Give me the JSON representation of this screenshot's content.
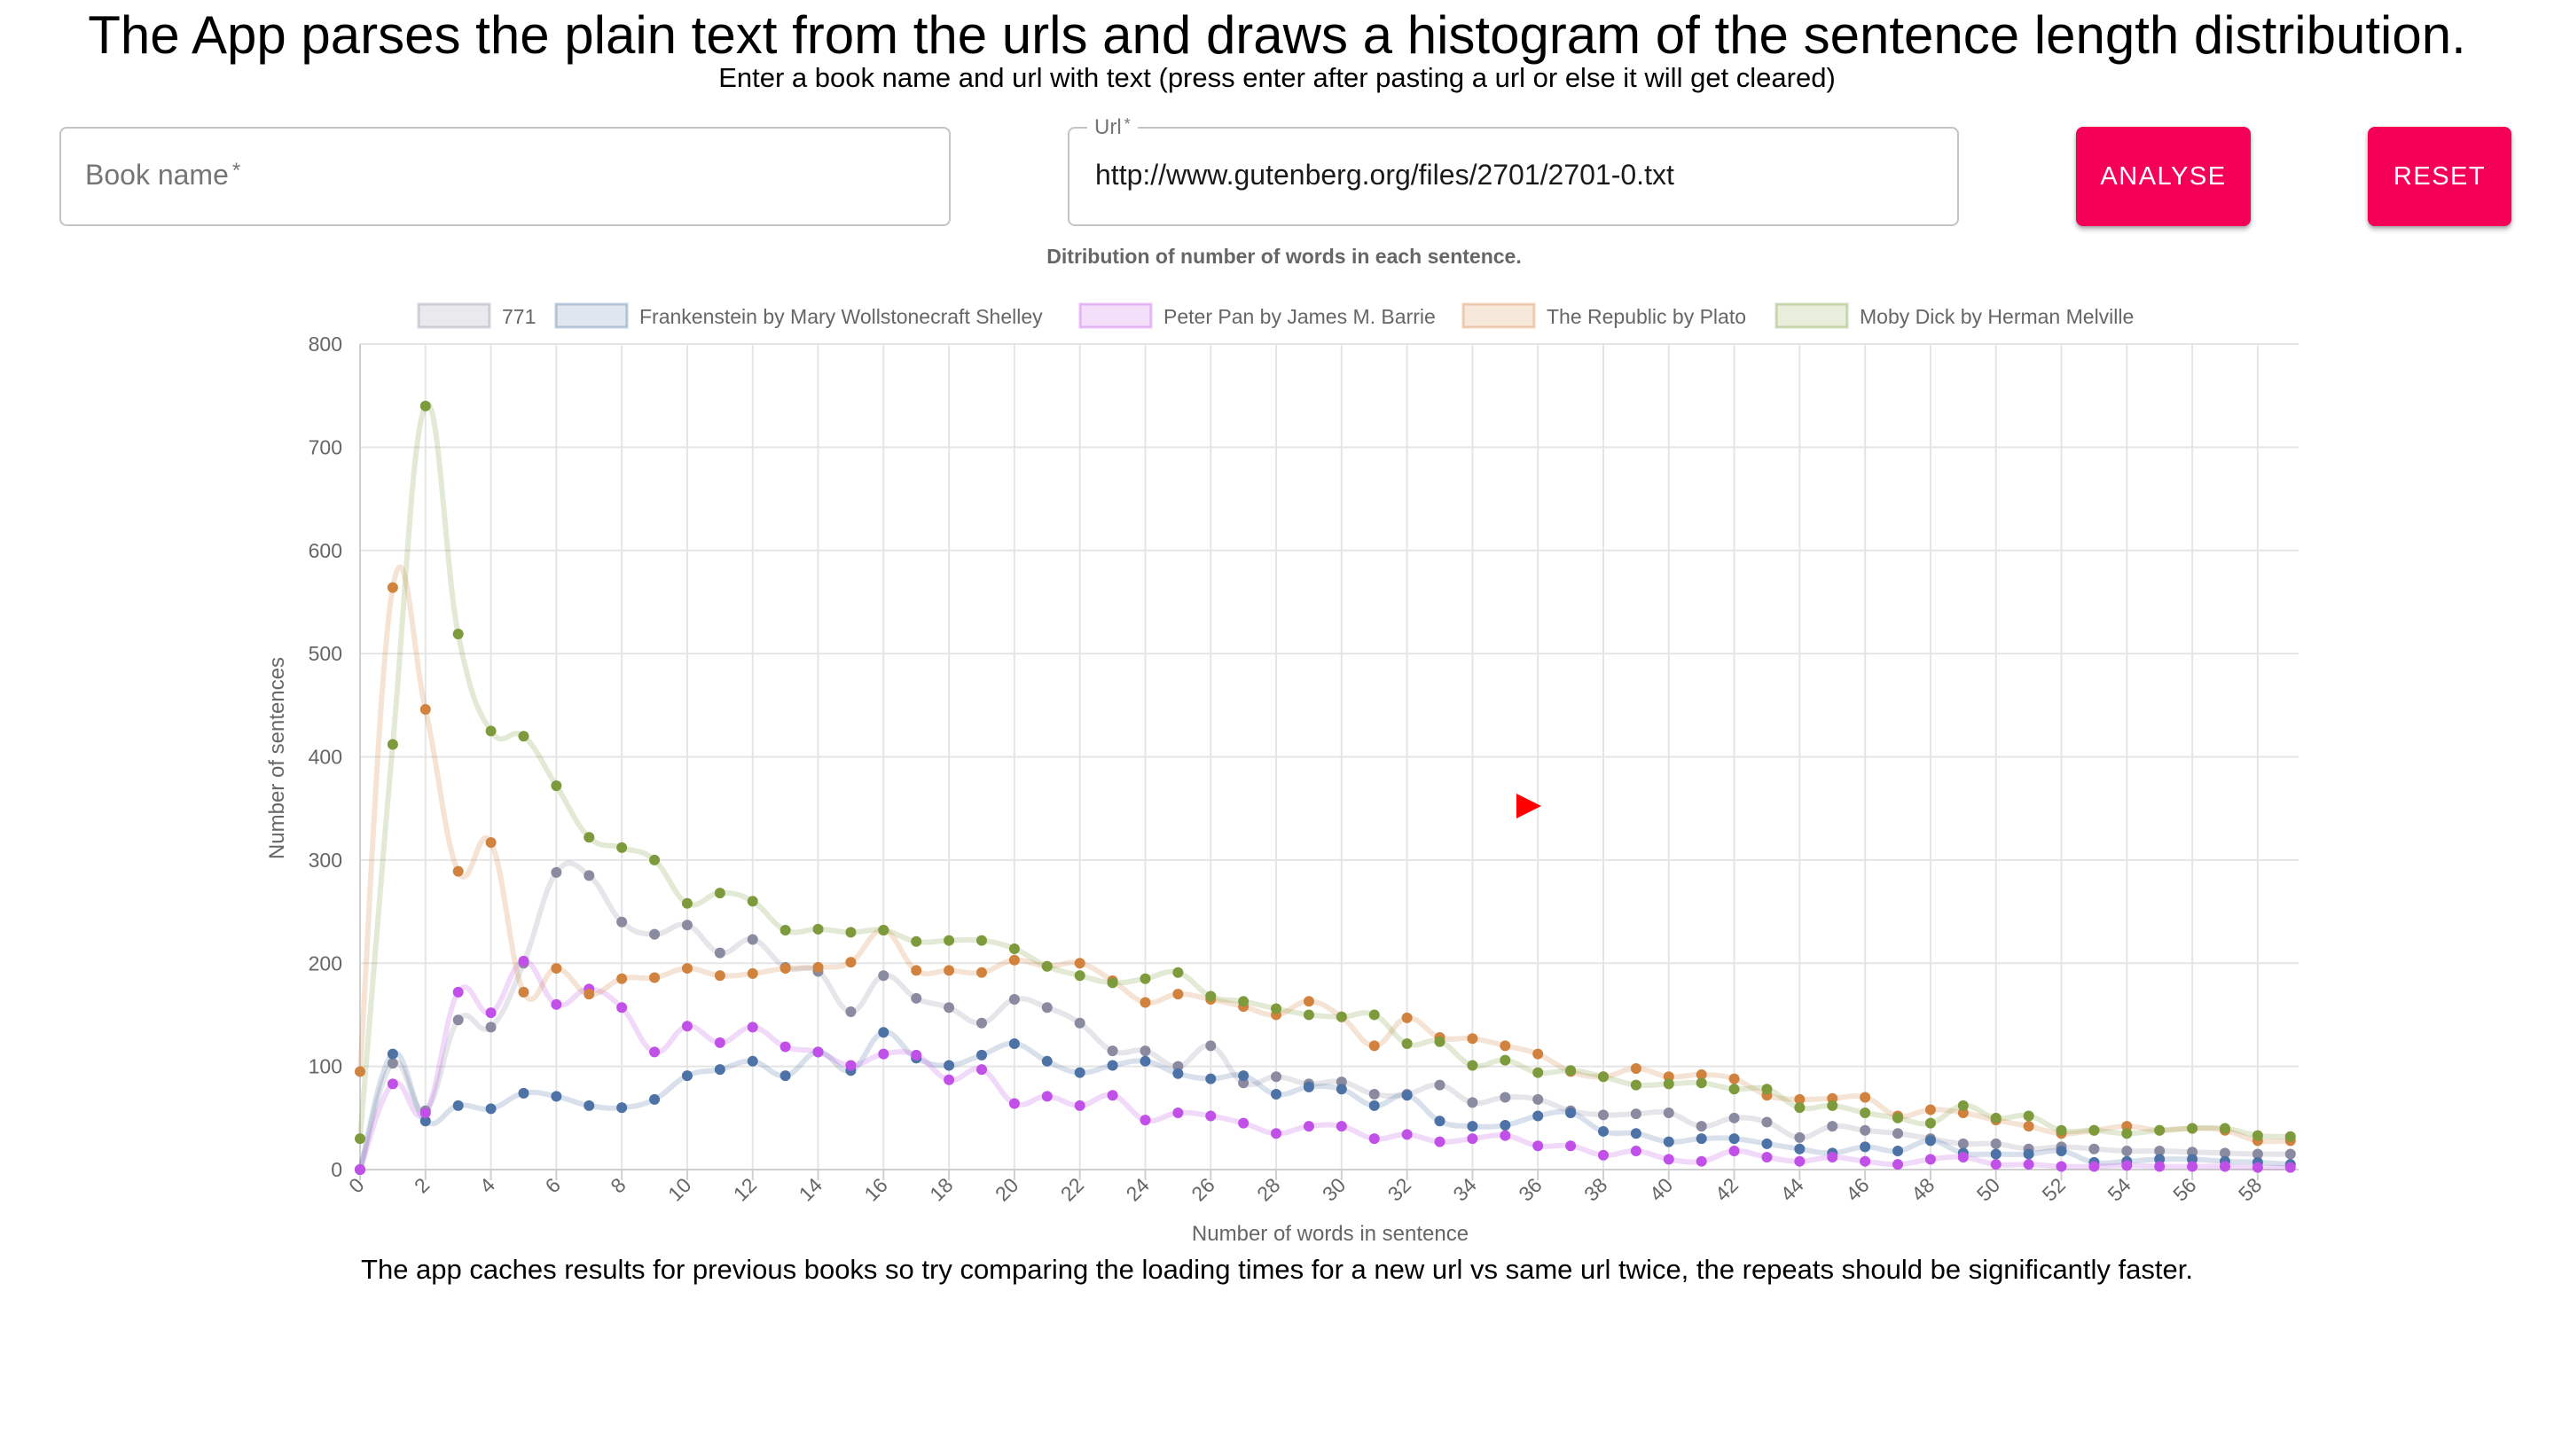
{
  "header": {
    "title": "The App parses the plain text from the urls and draws a histogram of the sentence length distribution.",
    "subtitle": "Enter a book name and url with text (press enter after pasting a url or else it will get cleared)"
  },
  "form": {
    "book_name": {
      "placeholder": "Book name",
      "required_mark": "*",
      "value": ""
    },
    "url": {
      "label": "Url",
      "required_mark": "*",
      "value": "http://www.gutenberg.org/files/2701/2701-0.txt"
    },
    "analyse_label": "ANALYSE",
    "reset_label": "RESET",
    "button_color": "#f50057"
  },
  "footer": "The app caches results for previous books so try comparing the loading times for a new url vs same url twice, the repeats should be significantly faster.",
  "cursor": {
    "icon": "play-triangle-icon",
    "color": "#ff0000"
  },
  "chart_data": {
    "type": "line",
    "title": "Ditribution of number of words in each sentence.",
    "xlabel": "Number of words in sentence",
    "ylabel": "Number of sentences",
    "ylim": [
      0,
      800
    ],
    "yticks": [
      0,
      100,
      200,
      300,
      400,
      500,
      600,
      700,
      800
    ],
    "x": [
      0,
      1,
      2,
      3,
      4,
      5,
      6,
      7,
      8,
      9,
      10,
      11,
      12,
      13,
      14,
      15,
      16,
      17,
      18,
      19,
      20,
      21,
      22,
      23,
      24,
      25,
      26,
      27,
      28,
      29,
      30,
      31,
      32,
      33,
      34,
      35,
      36,
      37,
      38,
      39,
      40,
      41,
      42,
      43,
      44,
      45,
      46,
      47,
      48,
      49,
      50,
      51,
      52,
      53,
      54,
      55,
      56,
      57,
      58,
      59
    ],
    "xtick_labels": [
      "0",
      "2",
      "4",
      "6",
      "8",
      "10",
      "12",
      "14",
      "16",
      "18",
      "20",
      "22",
      "24",
      "26",
      "28",
      "30",
      "32",
      "34",
      "36",
      "38",
      "40",
      "42",
      "44",
      "46",
      "48",
      "50",
      "52",
      "54",
      "56",
      "58"
    ],
    "grid": true,
    "legend_position": "top",
    "series": [
      {
        "name": "771",
        "color": "#8a8aa0",
        "values": [
          0,
          103,
          57,
          145,
          138,
          200,
          288,
          285,
          240,
          228,
          237,
          210,
          223,
          196,
          192,
          153,
          188,
          166,
          157,
          142,
          165,
          157,
          142,
          115,
          115,
          100,
          120,
          84,
          90,
          83,
          85,
          73,
          73,
          82,
          65,
          70,
          68,
          57,
          53,
          54,
          55,
          42,
          50,
          46,
          31,
          42,
          38,
          35,
          30,
          25,
          25,
          20,
          22,
          20,
          18,
          18,
          17,
          16,
          15,
          15
        ]
      },
      {
        "name": "Frankenstein by Mary Wollstonecraft Shelley",
        "color": "#4d72a5",
        "values": [
          0,
          112,
          47,
          62,
          59,
          74,
          71,
          62,
          60,
          68,
          91,
          97,
          105,
          91,
          114,
          96,
          133,
          108,
          101,
          111,
          122,
          105,
          94,
          101,
          105,
          93,
          88,
          91,
          73,
          80,
          78,
          62,
          72,
          47,
          42,
          43,
          52,
          55,
          37,
          35,
          27,
          30,
          30,
          25,
          20,
          16,
          22,
          18,
          28,
          16,
          15,
          15,
          18,
          7,
          8,
          10,
          10,
          8,
          7,
          5
        ]
      },
      {
        "name": "Peter Pan by James M. Barrie",
        "color": "#c050e8",
        "values": [
          0,
          83,
          55,
          172,
          152,
          202,
          160,
          175,
          157,
          114,
          139,
          123,
          138,
          119,
          114,
          101,
          112,
          111,
          87,
          97,
          64,
          71,
          62,
          72,
          48,
          55,
          52,
          45,
          35,
          42,
          42,
          30,
          34,
          27,
          30,
          33,
          23,
          23,
          14,
          18,
          10,
          8,
          18,
          12,
          8,
          12,
          8,
          5,
          10,
          12,
          5,
          5,
          3,
          3,
          4,
          3,
          3,
          3,
          2,
          2
        ]
      },
      {
        "name": "The Republic by Plato",
        "color": "#d0823e",
        "values": [
          95,
          564,
          446,
          289,
          317,
          172,
          195,
          170,
          185,
          186,
          195,
          188,
          190,
          195,
          196,
          201,
          232,
          193,
          193,
          191,
          203,
          197,
          200,
          183,
          162,
          170,
          165,
          158,
          150,
          163,
          148,
          120,
          147,
          128,
          127,
          120,
          112,
          95,
          90,
          98,
          90,
          92,
          88,
          72,
          68,
          69,
          70,
          52,
          58,
          55,
          48,
          42,
          35,
          38,
          42,
          38,
          40,
          38,
          28,
          28
        ]
      },
      {
        "name": "Moby Dick by Herman Melville",
        "color": "#7d9a3c",
        "values": [
          30,
          412,
          740,
          519,
          425,
          420,
          372,
          322,
          312,
          300,
          258,
          268,
          260,
          232,
          233,
          230,
          232,
          221,
          222,
          222,
          214,
          197,
          188,
          181,
          185,
          191,
          168,
          163,
          156,
          150,
          148,
          150,
          122,
          124,
          101,
          106,
          94,
          96,
          90,
          82,
          83,
          84,
          78,
          78,
          60,
          62,
          55,
          50,
          45,
          62,
          50,
          52,
          38,
          38,
          35,
          38,
          40,
          40,
          33,
          32
        ]
      }
    ]
  }
}
